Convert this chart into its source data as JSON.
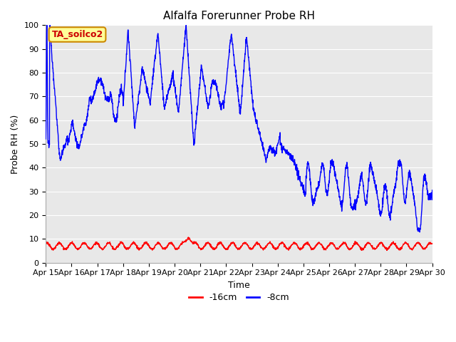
{
  "title": "Alfalfa Forerunner Probe RH",
  "ylabel": "Probe RH (%)",
  "xlabel": "Time",
  "ylim": [
    0,
    100
  ],
  "yticks": [
    0,
    10,
    20,
    30,
    40,
    50,
    60,
    70,
    80,
    90,
    100
  ],
  "xtick_labels": [
    "Apr 15",
    "Apr 16",
    "Apr 17",
    "Apr 18",
    "Apr 19",
    "Apr 20",
    "Apr 21",
    "Apr 22",
    "Apr 23",
    "Apr 24",
    "Apr 25",
    "Apr 26",
    "Apr 27",
    "Apr 28",
    "Apr 29",
    "Apr 30"
  ],
  "legend_labels": [
    "-16cm",
    "-8cm"
  ],
  "line_colors": [
    "#ff0000",
    "#0000ff"
  ],
  "bg_color": "#e8e8e8",
  "plot_bg_color": "#e8e8e8",
  "annotation_text": "TA_soilco2",
  "annotation_bg": "#ffff99",
  "annotation_border": "#cc8800",
  "title_fontsize": 11,
  "axis_fontsize": 9,
  "tick_fontsize": 8
}
